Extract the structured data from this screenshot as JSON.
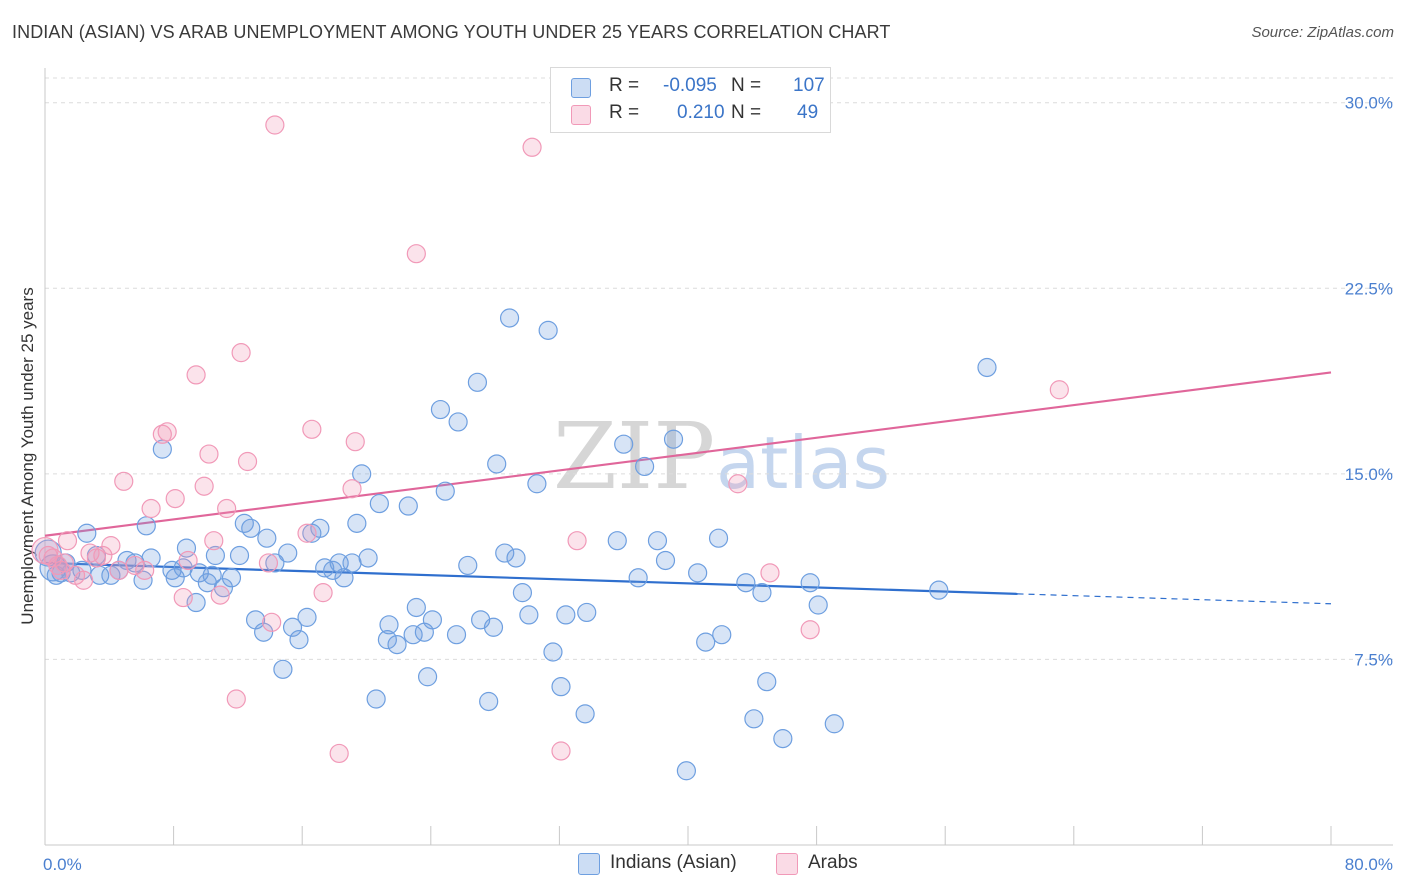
{
  "title": "INDIAN (ASIAN) VS ARAB UNEMPLOYMENT AMONG YOUTH UNDER 25 YEARS CORRELATION CHART",
  "source": "Source: ZipAtlas.com",
  "watermark": {
    "zip": "ZIP",
    "atlas": "atlas"
  },
  "legend_top": {
    "rows": [
      {
        "r_label": "R =",
        "r_value": "-0.095",
        "n_label": "N =",
        "n_value": "107",
        "color": "#6e9fe0"
      },
      {
        "r_label": "R =",
        "r_value": "0.210",
        "n_label": "N =",
        "n_value": "49",
        "color": "#f199b8"
      }
    ]
  },
  "legend_bottom": {
    "items": [
      {
        "label": "Indians (Asian)",
        "color": "#6e9fe0"
      },
      {
        "label": "Arabs",
        "color": "#f199b8"
      }
    ]
  },
  "chart_data": {
    "type": "scatter",
    "title": "INDIAN (ASIAN) VS ARAB UNEMPLOYMENT AMONG YOUTH UNDER 25 YEARS CORRELATION CHART",
    "xlabel": "",
    "ylabel": "Unemployment Among Youth under 25 years",
    "xlim": [
      0,
      80
    ],
    "ylim": [
      0,
      31
    ],
    "x_tick_labels": [
      {
        "value": 0,
        "label": "0.0%"
      },
      {
        "value": 80,
        "label": "80.0%"
      }
    ],
    "y_tick_labels": [
      {
        "value": 7.5,
        "label": "7.5%"
      },
      {
        "value": 15.0,
        "label": "15.0%"
      },
      {
        "value": 22.5,
        "label": "22.5%"
      },
      {
        "value": 30.0,
        "label": "30.0%"
      }
    ],
    "x_minor_ticks": [
      8,
      16,
      24,
      32,
      40,
      48,
      56,
      64,
      72,
      80
    ],
    "grid": true,
    "legend_position": "top-center",
    "series": [
      {
        "name": "Indians (Asian)",
        "color": "#6e9fe0",
        "trend": {
          "x0": 0,
          "y0": 11.4,
          "x1": 60.5,
          "y1": 10.15,
          "dash_to_x": 80,
          "dash_to_y": 9.75,
          "color": "#2f6fce"
        },
        "points": [
          [
            0.2,
            11.8
          ],
          [
            0.5,
            11.2
          ],
          [
            0.7,
            10.9
          ],
          [
            1.0,
            11.0
          ],
          [
            1.3,
            11.4
          ],
          [
            1.6,
            11.0
          ],
          [
            2.3,
            11.1
          ],
          [
            2.6,
            12.6
          ],
          [
            3.2,
            11.7
          ],
          [
            3.4,
            10.9
          ],
          [
            4.1,
            10.9
          ],
          [
            4.6,
            11.1
          ],
          [
            5.1,
            11.5
          ],
          [
            5.6,
            11.4
          ],
          [
            6.1,
            10.7
          ],
          [
            6.3,
            12.9
          ],
          [
            6.6,
            11.6
          ],
          [
            7.3,
            16.0
          ],
          [
            7.9,
            11.1
          ],
          [
            8.1,
            10.8
          ],
          [
            8.6,
            11.2
          ],
          [
            8.8,
            12.0
          ],
          [
            9.4,
            9.8
          ],
          [
            9.6,
            11.0
          ],
          [
            10.1,
            10.6
          ],
          [
            10.4,
            10.9
          ],
          [
            10.6,
            11.7
          ],
          [
            11.1,
            10.4
          ],
          [
            11.6,
            10.8
          ],
          [
            12.1,
            11.7
          ],
          [
            12.4,
            13.0
          ],
          [
            12.8,
            12.8
          ],
          [
            13.1,
            9.1
          ],
          [
            13.6,
            8.6
          ],
          [
            13.8,
            12.4
          ],
          [
            14.3,
            11.4
          ],
          [
            14.8,
            7.1
          ],
          [
            15.1,
            11.8
          ],
          [
            15.4,
            8.8
          ],
          [
            15.8,
            8.3
          ],
          [
            16.3,
            9.2
          ],
          [
            16.6,
            12.6
          ],
          [
            17.1,
            12.8
          ],
          [
            17.4,
            11.2
          ],
          [
            17.9,
            11.1
          ],
          [
            18.3,
            11.4
          ],
          [
            18.6,
            10.8
          ],
          [
            19.1,
            11.4
          ],
          [
            19.4,
            13.0
          ],
          [
            19.7,
            15.0
          ],
          [
            20.1,
            11.6
          ],
          [
            20.6,
            5.9
          ],
          [
            20.8,
            13.8
          ],
          [
            21.3,
            8.3
          ],
          [
            21.4,
            8.9
          ],
          [
            21.9,
            8.1
          ],
          [
            22.6,
            13.7
          ],
          [
            22.9,
            8.5
          ],
          [
            23.1,
            9.6
          ],
          [
            23.6,
            8.6
          ],
          [
            23.8,
            6.8
          ],
          [
            24.1,
            9.1
          ],
          [
            24.6,
            17.6
          ],
          [
            24.9,
            14.3
          ],
          [
            25.6,
            8.5
          ],
          [
            25.7,
            17.1
          ],
          [
            26.3,
            11.3
          ],
          [
            26.9,
            18.7
          ],
          [
            27.1,
            9.1
          ],
          [
            27.6,
            5.8
          ],
          [
            27.9,
            8.8
          ],
          [
            28.1,
            15.4
          ],
          [
            28.6,
            11.8
          ],
          [
            28.9,
            21.3
          ],
          [
            29.3,
            11.6
          ],
          [
            29.7,
            10.2
          ],
          [
            30.1,
            9.3
          ],
          [
            30.6,
            14.6
          ],
          [
            31.3,
            20.8
          ],
          [
            31.6,
            7.8
          ],
          [
            32.1,
            6.4
          ],
          [
            32.4,
            9.3
          ],
          [
            33.6,
            5.3
          ],
          [
            33.7,
            9.4
          ],
          [
            35.6,
            12.3
          ],
          [
            36.0,
            16.2
          ],
          [
            36.9,
            10.8
          ],
          [
            37.3,
            15.3
          ],
          [
            38.1,
            12.3
          ],
          [
            38.6,
            11.5
          ],
          [
            39.1,
            16.4
          ],
          [
            39.9,
            3.0
          ],
          [
            40.6,
            11.0
          ],
          [
            41.1,
            8.2
          ],
          [
            41.9,
            12.4
          ],
          [
            42.1,
            8.5
          ],
          [
            43.6,
            10.6
          ],
          [
            44.1,
            5.1
          ],
          [
            44.6,
            10.2
          ],
          [
            44.9,
            6.6
          ],
          [
            45.9,
            4.3
          ],
          [
            47.6,
            10.6
          ],
          [
            48.1,
            9.7
          ],
          [
            49.1,
            4.9
          ],
          [
            55.6,
            10.3
          ],
          [
            58.6,
            19.3
          ]
        ]
      },
      {
        "name": "Arabs",
        "color": "#f199b8",
        "trend": {
          "x0": 0,
          "y0": 12.5,
          "x1": 80,
          "y1": 19.1,
          "color": "#e0669a"
        },
        "points": [
          [
            0.2,
            11.7
          ],
          [
            0.5,
            11.6
          ],
          [
            0.8,
            11.3
          ],
          [
            1.0,
            11.1
          ],
          [
            1.2,
            11.4
          ],
          [
            1.4,
            12.3
          ],
          [
            1.9,
            10.9
          ],
          [
            2.4,
            10.7
          ],
          [
            2.8,
            11.8
          ],
          [
            3.2,
            11.6
          ],
          [
            3.6,
            11.7
          ],
          [
            4.1,
            12.1
          ],
          [
            4.6,
            11.1
          ],
          [
            4.9,
            14.7
          ],
          [
            5.6,
            11.3
          ],
          [
            6.2,
            11.1
          ],
          [
            6.6,
            13.6
          ],
          [
            7.3,
            16.6
          ],
          [
            7.6,
            16.7
          ],
          [
            8.1,
            14.0
          ],
          [
            8.6,
            10.0
          ],
          [
            8.9,
            11.5
          ],
          [
            9.4,
            19.0
          ],
          [
            9.9,
            14.5
          ],
          [
            10.2,
            15.8
          ],
          [
            10.5,
            12.3
          ],
          [
            10.9,
            10.1
          ],
          [
            11.3,
            13.6
          ],
          [
            11.9,
            5.9
          ],
          [
            12.2,
            19.9
          ],
          [
            12.6,
            15.5
          ],
          [
            13.9,
            11.4
          ],
          [
            14.1,
            9.0
          ],
          [
            14.3,
            29.1
          ],
          [
            16.3,
            12.6
          ],
          [
            16.6,
            16.8
          ],
          [
            17.3,
            10.2
          ],
          [
            18.3,
            3.7
          ],
          [
            19.1,
            14.4
          ],
          [
            19.3,
            16.3
          ],
          [
            23.1,
            23.9
          ],
          [
            30.3,
            28.2
          ],
          [
            32.1,
            3.8
          ],
          [
            33.1,
            12.3
          ],
          [
            43.1,
            14.6
          ],
          [
            45.1,
            11.0
          ],
          [
            47.6,
            8.7
          ],
          [
            63.1,
            18.4
          ],
          [
            0.0,
            11.9
          ]
        ]
      }
    ]
  }
}
